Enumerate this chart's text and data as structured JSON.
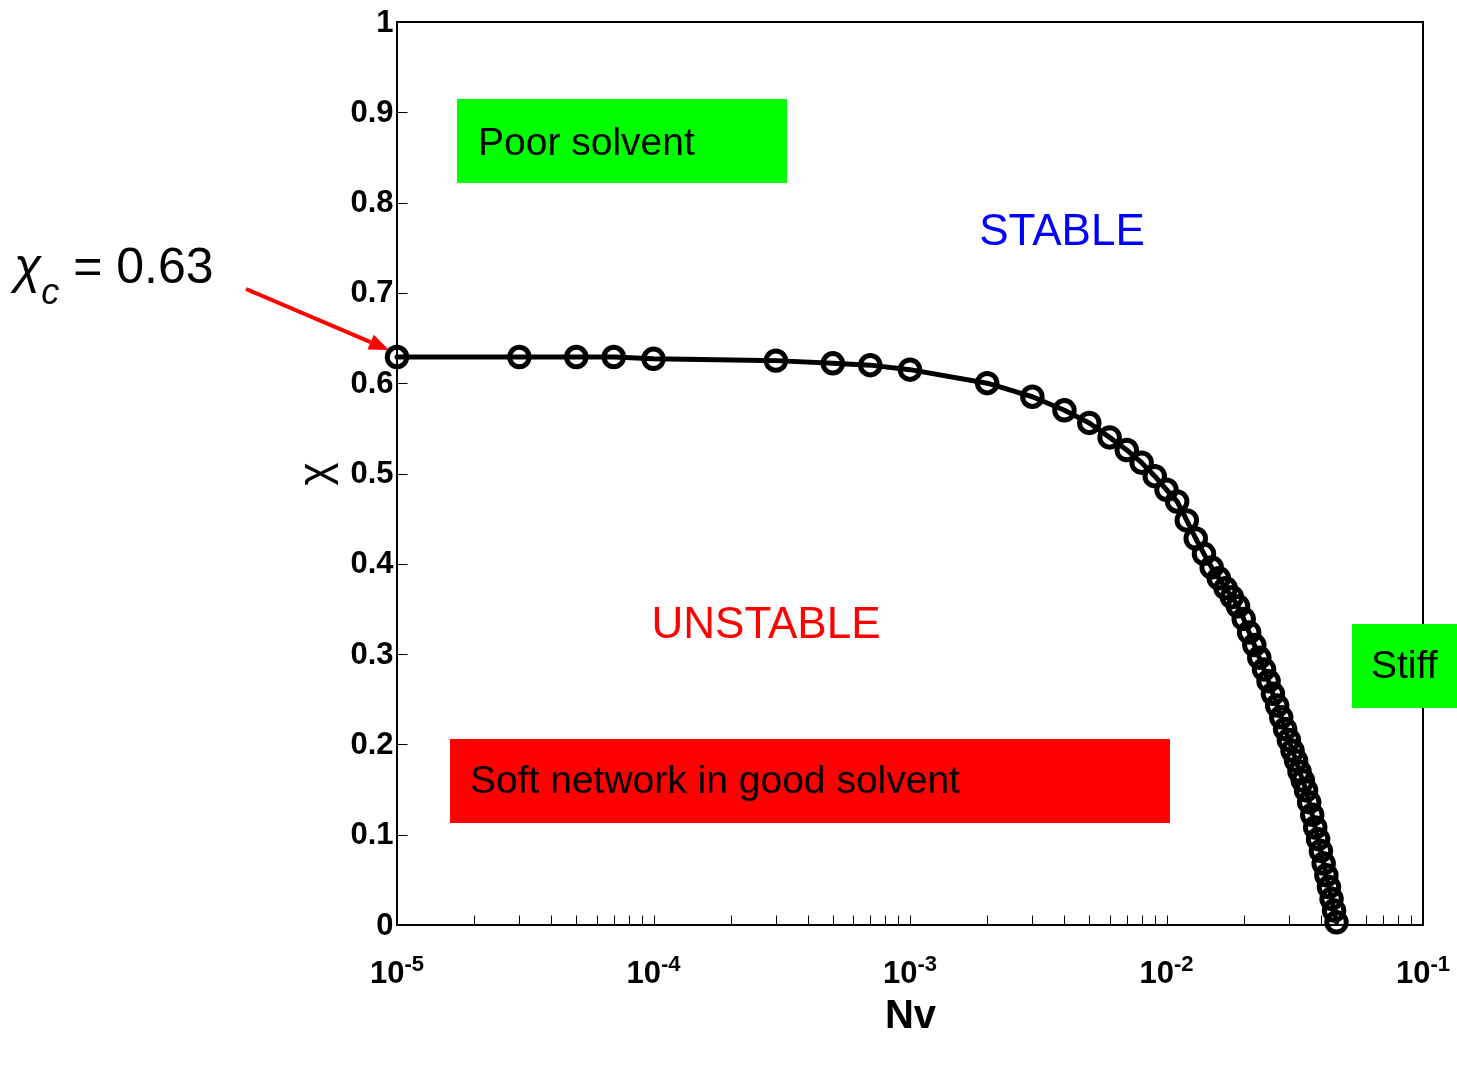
{
  "chart_data": {
    "type": "line",
    "xlabel": "Nv",
    "ylabel": "χ",
    "x": [
      1e-05,
      3e-05,
      5e-05,
      7e-05,
      0.0001,
      0.0003,
      0.0005,
      0.0007,
      0.001,
      0.002,
      0.003,
      0.004,
      0.005,
      0.006,
      0.007,
      0.008,
      0.009,
      0.01,
      0.011,
      0.012,
      0.013,
      0.014,
      0.015,
      0.016,
      0.017,
      0.018,
      0.019,
      0.02,
      0.021,
      0.022,
      0.023,
      0.024,
      0.025,
      0.026,
      0.027,
      0.028,
      0.029,
      0.03,
      0.031,
      0.032,
      0.033,
      0.034,
      0.035,
      0.036,
      0.037,
      0.038,
      0.039,
      0.04,
      0.041,
      0.042,
      0.043,
      0.044,
      0.045,
      0.046
    ],
    "series": [
      {
        "color": "#000000",
        "values": [
          0.629,
          0.629,
          0.629,
          0.629,
          0.627,
          0.625,
          0.622,
          0.62,
          0.615,
          0.6,
          0.585,
          0.57,
          0.556,
          0.54,
          0.526,
          0.512,
          0.497,
          0.482,
          0.469,
          0.448,
          0.428,
          0.411,
          0.396,
          0.384,
          0.373,
          0.363,
          0.353,
          0.339,
          0.324,
          0.31,
          0.296,
          0.283,
          0.27,
          0.256,
          0.243,
          0.23,
          0.217,
          0.205,
          0.193,
          0.182,
          0.17,
          0.16,
          0.149,
          0.136,
          0.122,
          0.108,
          0.095,
          0.082,
          0.068,
          0.055,
          0.042,
          0.029,
          0.016,
          0.003
        ]
      }
    ],
    "log": "x",
    "xlim": [
      1e-05,
      0.1
    ],
    "xticks": [
      {
        "value": 1e-05,
        "label": "10$^{-5}$"
      },
      {
        "value": 2e-05,
        "label": null
      },
      {
        "value": 3e-05,
        "label": null
      },
      {
        "value": 4e-05,
        "label": null
      },
      {
        "value": 5e-05,
        "label": null
      },
      {
        "value": 6e-05,
        "label": null
      },
      {
        "value": 7e-05,
        "label": null
      },
      {
        "value": 8e-05,
        "label": null
      },
      {
        "value": 9e-05,
        "label": null
      },
      {
        "value": 0.0001,
        "label": "10$^{-4}$"
      },
      {
        "value": 0.0002,
        "label": null
      },
      {
        "value": 0.0003,
        "label": null
      },
      {
        "value": 0.0004,
        "label": null
      },
      {
        "value": 0.0005,
        "label": null
      },
      {
        "value": 0.0006,
        "label": null
      },
      {
        "value": 0.0007,
        "label": null
      },
      {
        "value": 0.0008,
        "label": null
      },
      {
        "value": 0.0009,
        "label": null
      },
      {
        "value": 0.001,
        "label": "10$^{-3}$"
      },
      {
        "value": 0.002,
        "label": null
      },
      {
        "value": 0.003,
        "label": null
      },
      {
        "value": 0.004,
        "label": null
      },
      {
        "value": 0.005,
        "label": null
      },
      {
        "value": 0.006,
        "label": null
      },
      {
        "value": 0.007,
        "label": null
      },
      {
        "value": 0.008,
        "label": null
      },
      {
        "value": 0.009,
        "label": null
      },
      {
        "value": 0.01,
        "label": "10$^{-2}$"
      },
      {
        "value": 0.02,
        "label": null
      },
      {
        "value": 0.03,
        "label": null
      },
      {
        "value": 0.04,
        "label": null
      },
      {
        "value": 0.05,
        "label": null
      },
      {
        "value": 0.06,
        "label": null
      },
      {
        "value": 0.07,
        "label": null
      },
      {
        "value": 0.08,
        "label": null
      },
      {
        "value": 0.09,
        "label": null
      },
      {
        "value": 0.1,
        "label": "10$^{-1}$"
      }
    ],
    "ylim": [
      0,
      1
    ],
    "yticks": [
      0,
      0.1,
      0.2,
      0.3,
      0.4,
      0.5,
      0.6,
      0.7,
      0.8,
      0.9,
      1
    ],
    "grid": false,
    "marker": "circle",
    "line_style": "solid",
    "annotations": [
      "Poor solvent",
      "STABLE",
      "UNSTABLE",
      "Soft network in good solvent",
      "Stiff",
      "χ$_{c}$ = 0.63"
    ]
  }
}
